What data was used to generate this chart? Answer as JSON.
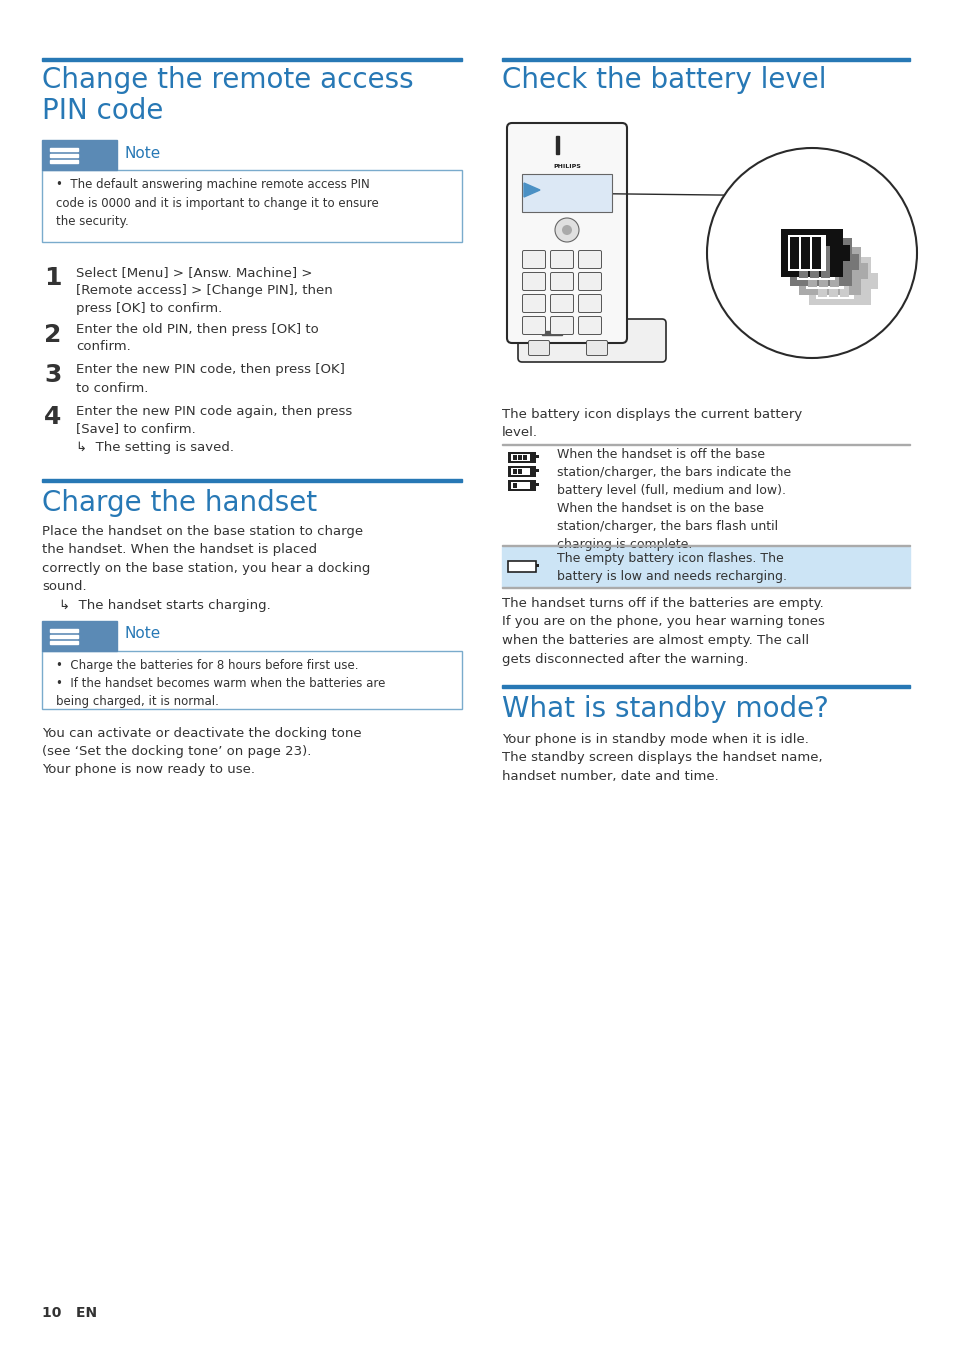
{
  "bg_color": "#ffffff",
  "blue_color": "#2778b5",
  "text_color": "#333333",
  "note_bg": "#5b8ab5",
  "note_box_border": "#7aabcc",
  "highlight_bg": "#cce4f5",
  "title_left": "Change the remote access\nPIN code",
  "title_right": "Check the battery level",
  "title_charge": "Charge the handset",
  "title_standby": "What is standby mode?",
  "note1_text": "The default answering machine remote access PIN\ncode is 0000 and it is important to change it to ensure\nthe security.",
  "steps": [
    {
      "num": "1",
      "text": "Select [Menu] > [Answ. Machine] >\n[Remote access] > [Change PIN], then\npress [OK] to confirm."
    },
    {
      "num": "2",
      "text": "Enter the old PIN, then press [OK] to\nconfirm."
    },
    {
      "num": "3",
      "text": "Enter the new PIN code, then press [OK]\nto confirm."
    },
    {
      "num": "4",
      "text": "Enter the new PIN code again, then press\n[Save] to confirm.\n↳  The setting is saved."
    }
  ],
  "charge_text": "Place the handset on the base station to charge\nthe handset. When the handset is placed\ncorrectly on the base station, you hear a docking\nsound.\n    ↳  The handset starts charging.",
  "note2_bullets": [
    "Charge the batteries for 8 hours before first use.",
    "If the handset becomes warm when the batteries are\nbeing charged, it is normal."
  ],
  "charge_extra": "You can activate or deactivate the docking tone\n(see ‘Set the docking tone’ on page 23).\nYour phone is now ready to use.",
  "battery_desc": "The battery icon displays the current battery\nlevel.",
  "row1_text": "When the handset is off the base\nstation/charger, the bars indicate the\nbattery level (full, medium and low).\nWhen the handset is on the base\nstation/charger, the bars flash until\ncharging is complete.",
  "row2_text": "The empty battery icon flashes. The\nbattery is low and needs recharging.",
  "battery_extra": "The handset turns off if the batteries are empty.\nIf you are on the phone, you hear warning tones\nwhen the batteries are almost empty. The call\ngets disconnected after the warning.",
  "standby_text": "Your phone is in standby mode when it is idle.\nThe standby screen displays the handset name,\nhandset number, date and time.",
  "footer": "10   EN"
}
